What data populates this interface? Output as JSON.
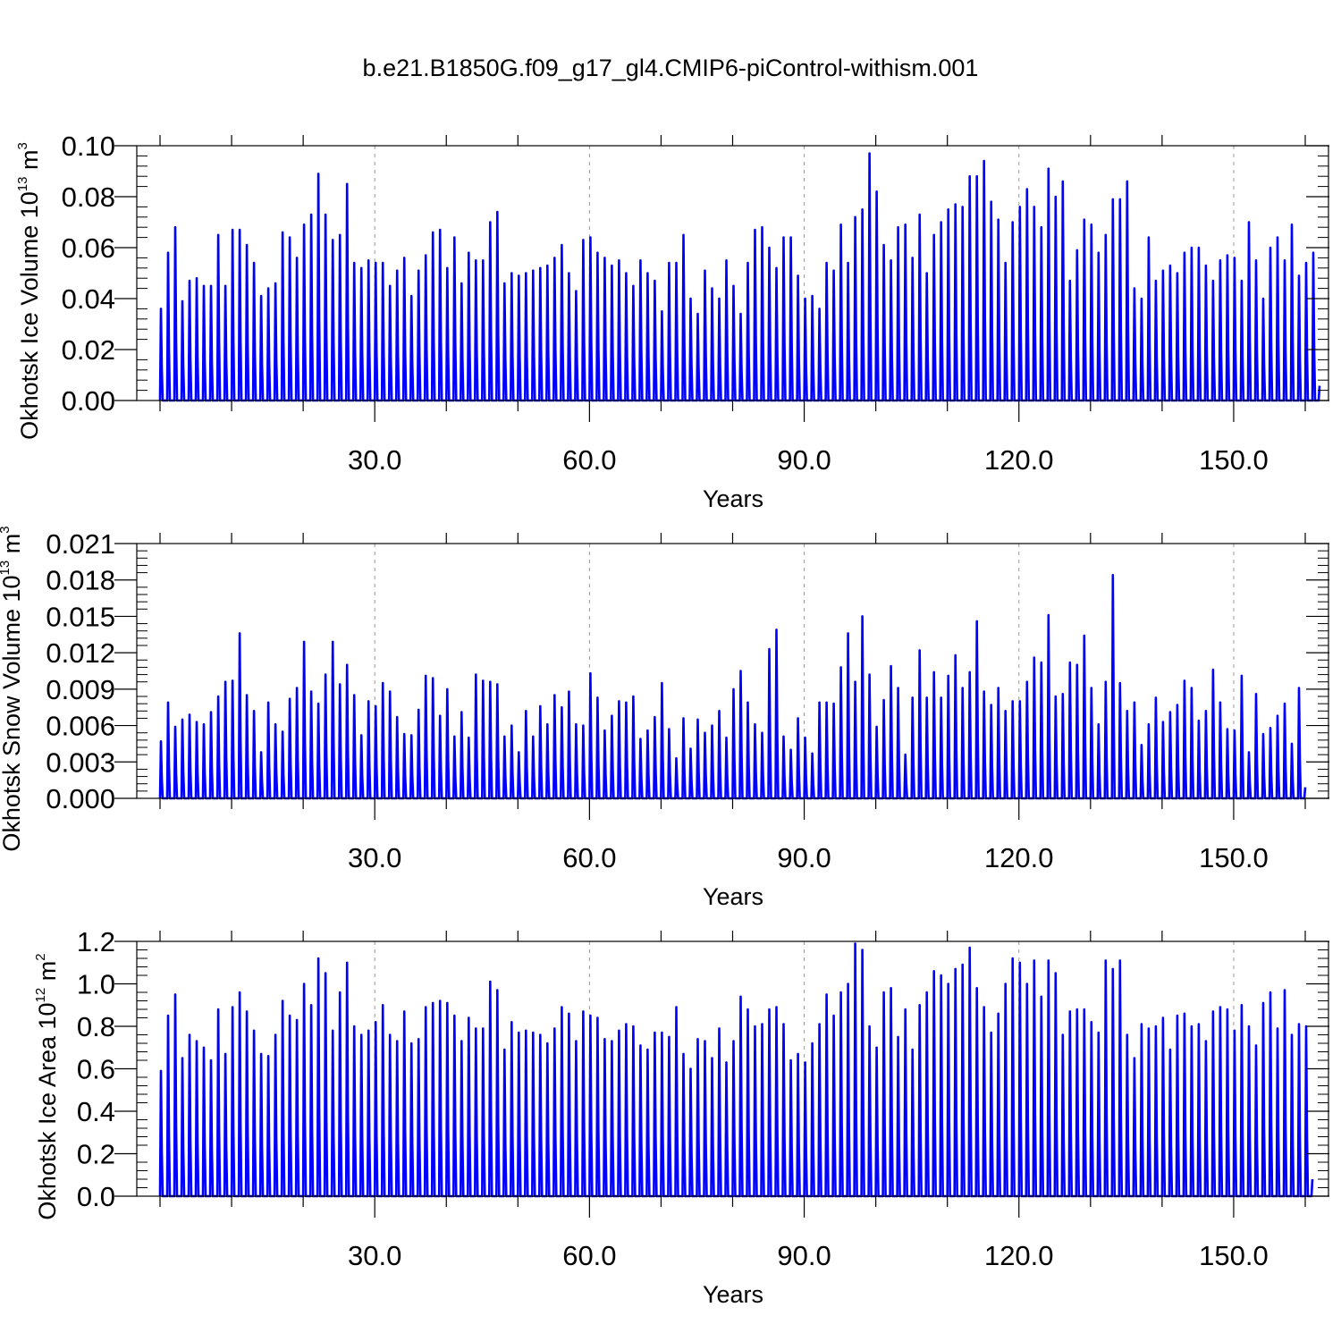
{
  "title": "b.e21.B1850G.f09_g17_gl4.CMIP6-piControl-withism.001",
  "line_color": "#0000ff",
  "chart_data": [
    {
      "type": "line",
      "ylabel": {
        "main": "Okhotsk Ice Volume 10",
        "exp": "13",
        "unit": " m",
        "unit_exp": "3"
      },
      "xlabel": "Years",
      "xlim": [
        0,
        160
      ],
      "ylim": [
        0,
        0.1
      ],
      "x_ticks": [
        "30.0",
        "60.0",
        "90.0",
        "120.0",
        "150.0"
      ],
      "x_tick_values": [
        30,
        60,
        90,
        120,
        150
      ],
      "y_ticks": [
        "0.00",
        "0.02",
        "0.04",
        "0.06",
        "0.08",
        "0.10"
      ],
      "y_tick_values": [
        0,
        0.02,
        0.04,
        0.06,
        0.08,
        0.1
      ],
      "annual_maxima": [
        0.036,
        0.058,
        0.068,
        0.039,
        0.047,
        0.048,
        0.045,
        0.045,
        0.065,
        0.045,
        0.067,
        0.067,
        0.061,
        0.054,
        0.041,
        0.044,
        0.046,
        0.066,
        0.064,
        0.056,
        0.069,
        0.073,
        0.089,
        0.073,
        0.063,
        0.065,
        0.085,
        0.054,
        0.052,
        0.055,
        0.054,
        0.054,
        0.045,
        0.051,
        0.056,
        0.041,
        0.051,
        0.057,
        0.066,
        0.067,
        0.052,
        0.064,
        0.046,
        0.058,
        0.055,
        0.055,
        0.07,
        0.074,
        0.046,
        0.05,
        0.049,
        0.05,
        0.051,
        0.052,
        0.053,
        0.056,
        0.061,
        0.05,
        0.043,
        0.063,
        0.064,
        0.058,
        0.056,
        0.053,
        0.055,
        0.05,
        0.045,
        0.055,
        0.05,
        0.047,
        0.035,
        0.054,
        0.054,
        0.065,
        0.04,
        0.034,
        0.051,
        0.044,
        0.04,
        0.055,
        0.045,
        0.034,
        0.054,
        0.067,
        0.068,
        0.06,
        0.052,
        0.064,
        0.064,
        0.049,
        0.04,
        0.041,
        0.036,
        0.054,
        0.051,
        0.069,
        0.054,
        0.072,
        0.075,
        0.097,
        0.082,
        0.061,
        0.055,
        0.068,
        0.069,
        0.056,
        0.073,
        0.05,
        0.065,
        0.07,
        0.075,
        0.077,
        0.076,
        0.088,
        0.088,
        0.094,
        0.078,
        0.071,
        0.054,
        0.07,
        0.076,
        0.083,
        0.076,
        0.068,
        0.091,
        0.08,
        0.086,
        0.047,
        0.059,
        0.071,
        0.069,
        0.058,
        0.065,
        0.079,
        0.079,
        0.086,
        0.044,
        0.04,
        0.064,
        0.047,
        0.051,
        0.053,
        0.05,
        0.058,
        0.06,
        0.06,
        0.053,
        0.047,
        0.055,
        0.057,
        0.056,
        0.047,
        0.07,
        0.055,
        0.04,
        0.06,
        0.064,
        0.055,
        0.069,
        0.049,
        0.054,
        0.058
      ]
    },
    {
      "type": "line",
      "ylabel": {
        "main": "Okhotsk Snow Volume 10",
        "exp": "13",
        "unit": " m",
        "unit_exp": "3"
      },
      "xlabel": "Years",
      "xlim": [
        0,
        160
      ],
      "ylim": [
        0,
        0.021
      ],
      "x_ticks": [
        "30.0",
        "60.0",
        "90.0",
        "120.0",
        "150.0"
      ],
      "x_tick_values": [
        30,
        60,
        90,
        120,
        150
      ],
      "y_ticks": [
        "0.000",
        "0.003",
        "0.006",
        "0.009",
        "0.012",
        "0.015",
        "0.018",
        "0.021"
      ],
      "y_tick_values": [
        0,
        0.003,
        0.006,
        0.009,
        0.012,
        0.015,
        0.018,
        0.021
      ],
      "annual_maxima": [
        0.0047,
        0.0079,
        0.0059,
        0.0065,
        0.0069,
        0.0063,
        0.0061,
        0.0071,
        0.0084,
        0.0096,
        0.0097,
        0.0136,
        0.0085,
        0.0072,
        0.0038,
        0.0079,
        0.0061,
        0.0055,
        0.0082,
        0.0091,
        0.0129,
        0.0088,
        0.0078,
        0.0102,
        0.0129,
        0.0094,
        0.011,
        0.0085,
        0.0052,
        0.008,
        0.0076,
        0.0095,
        0.0088,
        0.0067,
        0.0053,
        0.0052,
        0.0073,
        0.0101,
        0.0099,
        0.0068,
        0.009,
        0.0051,
        0.0071,
        0.005,
        0.0102,
        0.0097,
        0.0096,
        0.0094,
        0.0051,
        0.006,
        0.0038,
        0.0072,
        0.0051,
        0.0076,
        0.0061,
        0.0085,
        0.0075,
        0.0088,
        0.0061,
        0.006,
        0.0103,
        0.0083,
        0.0056,
        0.0068,
        0.008,
        0.0079,
        0.0084,
        0.0049,
        0.0056,
        0.0067,
        0.0095,
        0.0057,
        0.0033,
        0.0066,
        0.0041,
        0.0065,
        0.0054,
        0.006,
        0.0072,
        0.005,
        0.009,
        0.0105,
        0.0079,
        0.0061,
        0.0054,
        0.0123,
        0.0139,
        0.0051,
        0.004,
        0.0066,
        0.005,
        0.0037,
        0.0079,
        0.0079,
        0.0078,
        0.0108,
        0.0136,
        0.0096,
        0.015,
        0.0102,
        0.0059,
        0.0081,
        0.0109,
        0.0091,
        0.0036,
        0.0083,
        0.0122,
        0.0083,
        0.0104,
        0.0083,
        0.0101,
        0.0118,
        0.0091,
        0.0104,
        0.0146,
        0.0088,
        0.0077,
        0.0091,
        0.0072,
        0.008,
        0.008,
        0.0096,
        0.0116,
        0.0112,
        0.0151,
        0.0084,
        0.0086,
        0.0112,
        0.011,
        0.0134,
        0.0091,
        0.0061,
        0.0096,
        0.0184,
        0.0095,
        0.0072,
        0.0079,
        0.0044,
        0.0061,
        0.0083,
        0.0063,
        0.0071,
        0.0077,
        0.0097,
        0.0091,
        0.0064,
        0.0072,
        0.0106,
        0.0079,
        0.0057,
        0.0056,
        0.0101,
        0.0038,
        0.0086,
        0.0053,
        0.0058,
        0.0068,
        0.0078,
        0.0045,
        0.0091
      ]
    },
    {
      "type": "line",
      "ylabel": {
        "main": "Okhotsk Ice Area 10",
        "exp": "12",
        "unit": " m",
        "unit_exp": "2"
      },
      "xlabel": "Years",
      "xlim": [
        0,
        160
      ],
      "ylim": [
        0,
        1.2
      ],
      "x_ticks": [
        "30.0",
        "60.0",
        "90.0",
        "120.0",
        "150.0"
      ],
      "x_tick_values": [
        30,
        60,
        90,
        120,
        150
      ],
      "y_ticks": [
        "0.0",
        "0.2",
        "0.4",
        "0.6",
        "0.8",
        "1.0",
        "1.2"
      ],
      "y_tick_values": [
        0,
        0.2,
        0.4,
        0.6,
        0.8,
        1.0,
        1.2
      ],
      "annual_maxima": [
        0.59,
        0.85,
        0.95,
        0.65,
        0.76,
        0.73,
        0.7,
        0.64,
        0.88,
        0.67,
        0.89,
        0.96,
        0.87,
        0.78,
        0.67,
        0.66,
        0.76,
        0.92,
        0.85,
        0.83,
        1.0,
        0.9,
        1.12,
        1.05,
        0.78,
        0.96,
        1.1,
        0.8,
        0.76,
        0.78,
        0.82,
        0.9,
        0.76,
        0.73,
        0.87,
        0.72,
        0.74,
        0.89,
        0.91,
        0.92,
        0.91,
        0.85,
        0.73,
        0.84,
        0.79,
        0.79,
        1.01,
        0.97,
        0.69,
        0.82,
        0.77,
        0.78,
        0.77,
        0.76,
        0.72,
        0.79,
        0.89,
        0.86,
        0.73,
        0.87,
        0.85,
        0.84,
        0.74,
        0.73,
        0.78,
        0.81,
        0.8,
        0.71,
        0.69,
        0.77,
        0.77,
        0.75,
        0.89,
        0.67,
        0.6,
        0.74,
        0.73,
        0.65,
        0.79,
        0.63,
        0.73,
        0.94,
        0.88,
        0.8,
        0.81,
        0.88,
        0.89,
        0.81,
        0.64,
        0.67,
        0.63,
        0.72,
        0.81,
        0.95,
        0.85,
        0.96,
        1.0,
        1.19,
        1.16,
        0.8,
        0.7,
        0.96,
        0.98,
        0.75,
        0.88,
        0.69,
        0.9,
        0.96,
        1.06,
        1.04,
        1.0,
        1.07,
        1.09,
        1.17,
        0.98,
        0.89,
        0.77,
        0.86,
        1.0,
        1.12,
        1.1,
        1.0,
        1.11,
        0.94,
        1.11,
        1.05,
        0.76,
        0.87,
        0.88,
        0.88,
        0.82,
        0.77,
        1.11,
        1.07,
        1.11,
        0.76,
        0.65,
        0.81,
        0.79,
        0.8,
        0.84,
        0.69,
        0.85,
        0.86,
        0.8,
        0.81,
        0.73,
        0.87,
        0.89,
        0.88,
        0.78,
        0.9,
        0.8,
        0.71,
        0.91,
        0.96,
        0.79,
        0.97,
        0.76,
        0.81,
        0.8
      ]
    }
  ]
}
